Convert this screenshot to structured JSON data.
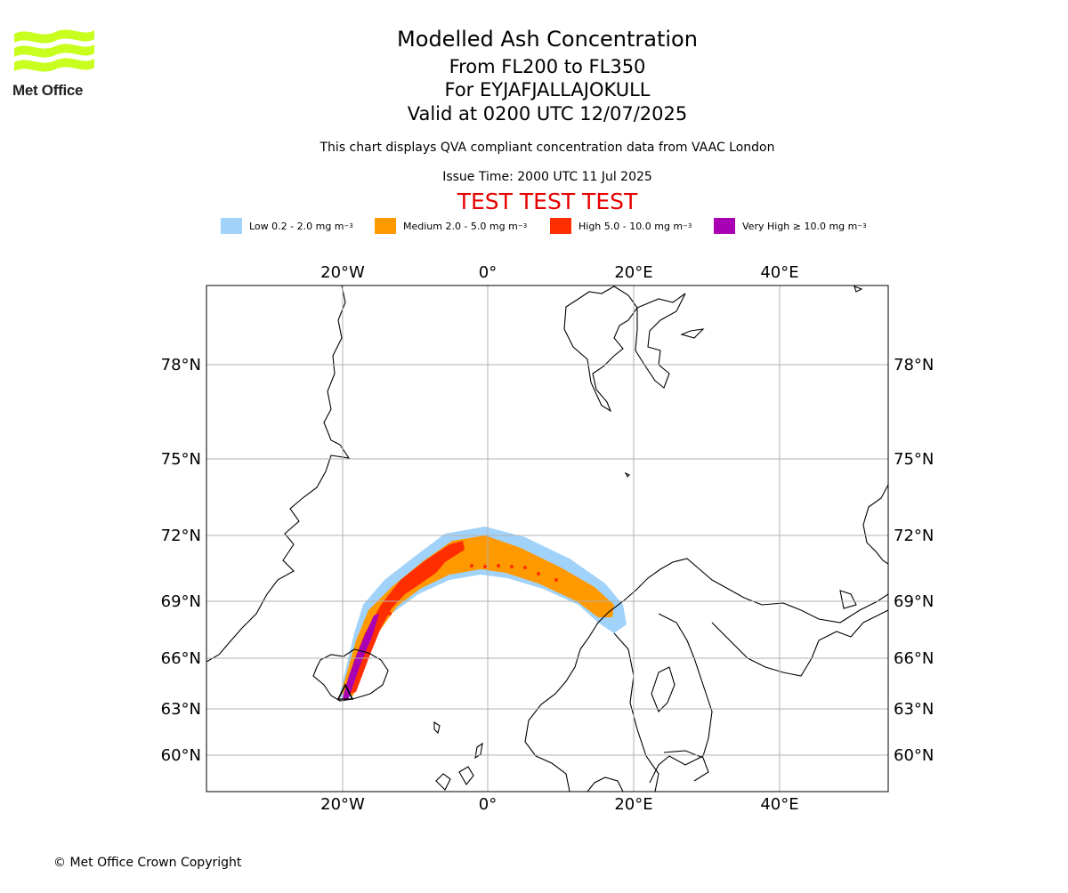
{
  "logo": {
    "brand": "Met Office",
    "colors": [
      "#c8ff1e",
      "#c2f526"
    ]
  },
  "header": {
    "title": "Modelled Ash Concentration",
    "levels": "From FL200 to FL350",
    "volcano": "For EYJAFJALLAJOKULL",
    "valid": "Valid at 0200 UTC 12/07/2025",
    "subtitle": "This chart displays QVA compliant concentration data from VAAC London",
    "issue_time": "Issue Time: 2000 UTC 11 Jul 2025",
    "test_banner": "TEST TEST TEST"
  },
  "legend": [
    {
      "label": "Low 0.2 - 2.0 mg m",
      "unit_sup": "−3",
      "color": "#a0d2fa"
    },
    {
      "label": "Medium 2.0 - 5.0 mg m",
      "unit_sup": "−3",
      "color": "#ff9900"
    },
    {
      "label": "High 5.0 - 10.0 mg m",
      "unit_sup": "−3",
      "color": "#ff2e00"
    },
    {
      "label": "Very High  ≥  10.0 mg m",
      "unit_sup": "−3",
      "color": "#aa00b4"
    }
  ],
  "map": {
    "lon_labels": [
      "20°W",
      "0°",
      "20°E",
      "40°E"
    ],
    "lat_labels": [
      "78°N",
      "75°N",
      "72°N",
      "69°N",
      "66°N",
      "63°N",
      "60°N"
    ],
    "grid_color": "#b0b0b0",
    "volcano_marker": "volcano-triangle"
  },
  "footer": {
    "copyright": "© Met Office Crown Copyright"
  }
}
